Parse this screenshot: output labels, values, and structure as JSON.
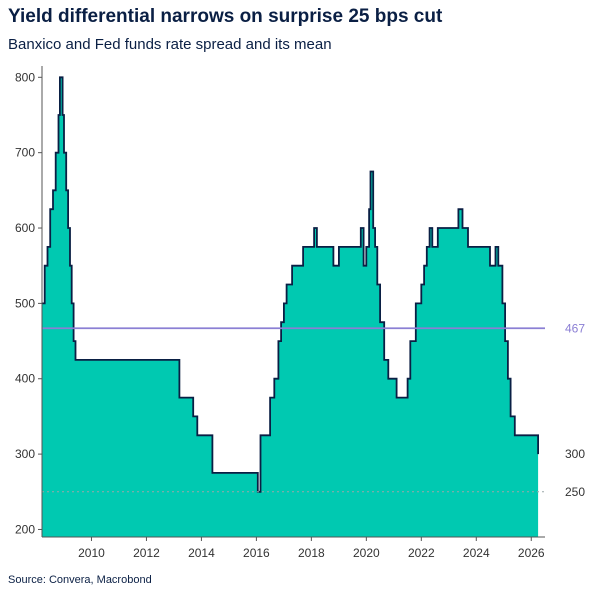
{
  "title": "Yield differential narrows on surprise 25 bps cut",
  "subtitle": "Banxico and Fed funds rate spread and its mean",
  "source": "Source: Convera, Macrobond",
  "colors": {
    "area": "#00c9b1",
    "line": "#0a1f44",
    "mean": "#8b7fd4",
    "ref": "#9aa7a8"
  },
  "chart_data": {
    "type": "area",
    "title": "Yield differential narrows on surprise 25 bps cut",
    "subtitle": "Banxico and Fed funds rate spread and its mean",
    "xlabel": "",
    "ylabel": "",
    "xlim": [
      2008.2,
      2026.5
    ],
    "ylim": [
      190,
      815
    ],
    "x_ticks": [
      "2010",
      "2012",
      "2014",
      "2016",
      "2018",
      "2020",
      "2022",
      "2024",
      "2026"
    ],
    "y_ticks": [
      "200",
      "300",
      "400",
      "500",
      "600",
      "700",
      "800"
    ],
    "grid": false,
    "mean": 467,
    "mean_label": "467",
    "reference_line": 250,
    "reference_label": "250",
    "last_value_label": "300",
    "series": [
      {
        "x": [
          2008.2,
          2008.3,
          2008.4,
          2008.5,
          2008.6,
          2008.7,
          2008.8,
          2008.85,
          2008.95,
          2009.0,
          2009.08,
          2009.15,
          2009.22,
          2009.28,
          2009.35,
          2009.42,
          2009.48,
          2009.55,
          2009.6,
          2012.2,
          2013.2,
          2013.7,
          2013.85,
          2014.4,
          2016.0,
          2016.05,
          2016.15,
          2016.5,
          2016.65,
          2016.8,
          2016.9,
          2017.0,
          2017.1,
          2017.3,
          2017.5,
          2017.7,
          2017.9,
          2018.0,
          2018.1,
          2018.2,
          2018.4,
          2018.6,
          2018.8,
          2019.0,
          2019.3,
          2019.6,
          2019.8,
          2019.9,
          2020.0,
          2020.1,
          2020.15,
          2020.25,
          2020.32,
          2020.4,
          2020.5,
          2020.65,
          2020.8,
          2021.1,
          2021.4,
          2021.5,
          2021.6,
          2021.8,
          2022.0,
          2022.1,
          2022.2,
          2022.3,
          2022.4,
          2022.5,
          2022.6,
          2022.8,
          2023.0,
          2023.2,
          2023.35,
          2023.5,
          2023.7,
          2024.0,
          2024.3,
          2024.5,
          2024.7,
          2024.8,
          2024.95,
          2025.05,
          2025.15,
          2025.25,
          2025.4,
          2025.6,
          2025.8,
          2026.0,
          2026.2,
          2026.25
        ],
        "y": [
          500,
          550,
          575,
          625,
          650,
          700,
          750,
          800,
          750,
          700,
          650,
          600,
          550,
          500,
          450,
          425,
          425,
          425,
          425,
          425,
          375,
          350,
          325,
          275,
          275,
          250,
          325,
          375,
          400,
          450,
          475,
          500,
          525,
          550,
          550,
          575,
          575,
          575,
          600,
          575,
          575,
          575,
          550,
          575,
          575,
          575,
          600,
          550,
          575,
          625,
          675,
          600,
          575,
          525,
          475,
          425,
          400,
          375,
          375,
          400,
          450,
          500,
          525,
          550,
          575,
          600,
          575,
          575,
          600,
          600,
          600,
          600,
          625,
          600,
          575,
          575,
          575,
          550,
          575,
          550,
          500,
          450,
          400,
          350,
          325,
          325,
          325,
          325,
          325,
          300
        ]
      }
    ]
  }
}
